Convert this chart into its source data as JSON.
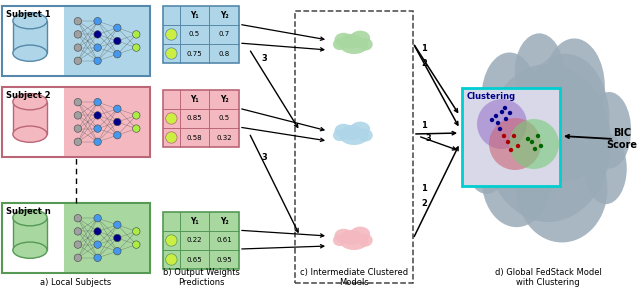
{
  "subjects": [
    "Subject 1",
    "Subject 2",
    "Subject n"
  ],
  "subject_colors": [
    "#AED6E8",
    "#F4B8C0",
    "#A8D8A0"
  ],
  "subject_border_colors": [
    "#5588AA",
    "#BB6677",
    "#559955"
  ],
  "tables": [
    {
      "header": [
        "Y₁",
        "Y₂"
      ],
      "rows": [
        [
          "0.5",
          "0.7"
        ],
        [
          "0.75",
          "0.8"
        ]
      ],
      "bg": "#C8E4F0",
      "border": "#5588AA"
    },
    {
      "header": [
        "Y₁",
        "Y₂"
      ],
      "rows": [
        [
          "0.85",
          "0.5"
        ],
        [
          "0.58",
          "0.32"
        ]
      ],
      "bg": "#F8D0D8",
      "border": "#BB6677"
    },
    {
      "header": [
        "Y₁",
        "Y₂"
      ],
      "rows": [
        [
          "0.22",
          "0.61"
        ],
        [
          "0.65",
          "0.95"
        ]
      ],
      "bg": "#C8ECC0",
      "border": "#559955"
    }
  ],
  "cloud_colors": [
    "#A8D8A0",
    "#AED6E8",
    "#F4B8C0"
  ],
  "label_a": "a) Local Subjects",
  "label_b": "b) Output Weights\nPredictions",
  "label_c": "c) Intermediate Clustered\nModels",
  "label_d": "d) Global FedStack Model\nwith Clustering",
  "bic_label": "BIC\nScore",
  "clustering_label": "Clustering",
  "main_cloud_color": "#9AABB8",
  "cluster_box_color": "#00CED1",
  "cluster_box_bg": "#D8D8E8"
}
